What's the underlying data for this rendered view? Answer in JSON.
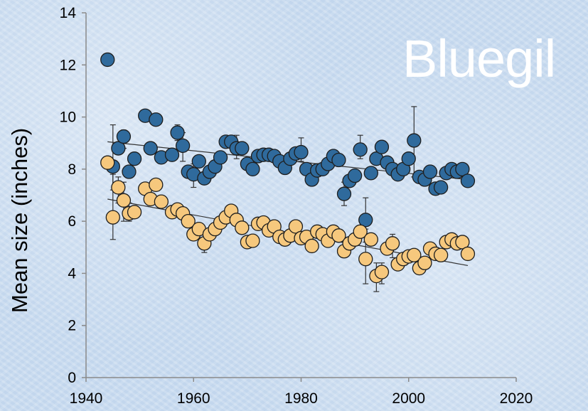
{
  "title": "Bluegil",
  "chart_data": {
    "type": "scatter",
    "title": "Bluegil",
    "xlabel": "",
    "ylabel": "Mean size (inches)",
    "xlim": [
      1940,
      2020
    ],
    "ylim": [
      0,
      14
    ],
    "xticks": [
      "1940",
      "1960",
      "1980",
      "2000",
      "2020"
    ],
    "yticks": [
      "0",
      "2",
      "4",
      "6",
      "8",
      "10",
      "12",
      "14"
    ],
    "grid": false,
    "legend": "none",
    "series": [
      {
        "color": "#2f6a9c",
        "points": [
          [
            1944,
            12.2
          ],
          [
            1945,
            8.1
          ],
          [
            1946,
            8.8
          ],
          [
            1947,
            9.25
          ],
          [
            1948,
            7.9
          ],
          [
            1949,
            8.4
          ],
          [
            1951,
            10.05
          ],
          [
            1952,
            8.8
          ],
          [
            1953,
            9.9
          ],
          [
            1954,
            8.45
          ],
          [
            1956,
            8.55
          ],
          [
            1957,
            9.4
          ],
          [
            1958,
            8.9
          ],
          [
            1959,
            7.9
          ],
          [
            1960,
            7.8
          ],
          [
            1961,
            8.3
          ],
          [
            1962,
            7.65
          ],
          [
            1963,
            7.9
          ],
          [
            1964,
            8.1
          ],
          [
            1965,
            8.45
          ],
          [
            1966,
            9.05
          ],
          [
            1967,
            9.05
          ],
          [
            1968,
            8.8
          ],
          [
            1969,
            8.8
          ],
          [
            1970,
            8.2
          ],
          [
            1971,
            8.0
          ],
          [
            1972,
            8.5
          ],
          [
            1973,
            8.55
          ],
          [
            1974,
            8.55
          ],
          [
            1975,
            8.5
          ],
          [
            1976,
            8.3
          ],
          [
            1977,
            8.05
          ],
          [
            1978,
            8.4
          ],
          [
            1979,
            8.6
          ],
          [
            1980,
            8.65
          ],
          [
            1981,
            8.0
          ],
          [
            1982,
            7.6
          ],
          [
            1983,
            7.95
          ],
          [
            1984,
            8.0
          ],
          [
            1985,
            8.2
          ],
          [
            1986,
            8.5
          ],
          [
            1987,
            8.35
          ],
          [
            1988,
            7.05
          ],
          [
            1989,
            7.55
          ],
          [
            1990,
            7.75
          ],
          [
            1991,
            8.75
          ],
          [
            1992,
            6.05
          ],
          [
            1993,
            7.85
          ],
          [
            1994,
            8.4
          ],
          [
            1995,
            8.85
          ],
          [
            1996,
            8.25
          ],
          [
            1997,
            8.0
          ],
          [
            1998,
            7.8
          ],
          [
            1999,
            8.0
          ],
          [
            2000,
            8.4
          ],
          [
            2001,
            9.1
          ],
          [
            2002,
            7.7
          ],
          [
            2003,
            7.6
          ],
          [
            2004,
            7.9
          ],
          [
            2005,
            7.25
          ],
          [
            2006,
            7.3
          ],
          [
            2007,
            7.85
          ],
          [
            2008,
            8.0
          ],
          [
            2009,
            7.9
          ],
          [
            2010,
            8.0
          ],
          [
            2011,
            7.55
          ]
        ]
      },
      {
        "color": "#f6c87d",
        "points": [
          [
            1944,
            8.25
          ],
          [
            1945,
            6.15
          ],
          [
            1946,
            7.3
          ],
          [
            1947,
            6.8
          ],
          [
            1948,
            6.3
          ],
          [
            1949,
            6.35
          ],
          [
            1951,
            7.25
          ],
          [
            1952,
            6.85
          ],
          [
            1953,
            7.4
          ],
          [
            1954,
            6.75
          ],
          [
            1956,
            6.35
          ],
          [
            1957,
            6.45
          ],
          [
            1958,
            6.3
          ],
          [
            1959,
            6.0
          ],
          [
            1960,
            5.5
          ],
          [
            1961,
            5.7
          ],
          [
            1962,
            5.15
          ],
          [
            1963,
            5.5
          ],
          [
            1964,
            5.7
          ],
          [
            1965,
            5.95
          ],
          [
            1966,
            6.15
          ],
          [
            1967,
            6.4
          ],
          [
            1968,
            6.05
          ],
          [
            1969,
            5.75
          ],
          [
            1970,
            5.2
          ],
          [
            1971,
            5.25
          ],
          [
            1972,
            5.9
          ],
          [
            1973,
            5.95
          ],
          [
            1974,
            5.65
          ],
          [
            1975,
            5.8
          ],
          [
            1976,
            5.4
          ],
          [
            1977,
            5.3
          ],
          [
            1978,
            5.45
          ],
          [
            1979,
            5.8
          ],
          [
            1980,
            5.35
          ],
          [
            1981,
            5.4
          ],
          [
            1982,
            5.05
          ],
          [
            1983,
            5.6
          ],
          [
            1984,
            5.5
          ],
          [
            1985,
            5.25
          ],
          [
            1986,
            5.6
          ],
          [
            1987,
            5.45
          ],
          [
            1988,
            4.85
          ],
          [
            1989,
            5.15
          ],
          [
            1990,
            5.3
          ],
          [
            1991,
            5.6
          ],
          [
            1992,
            4.55
          ],
          [
            1993,
            5.3
          ],
          [
            1994,
            3.9
          ],
          [
            1995,
            4.05
          ],
          [
            1996,
            4.95
          ],
          [
            1997,
            5.15
          ],
          [
            1998,
            4.35
          ],
          [
            1999,
            4.55
          ],
          [
            2000,
            4.65
          ],
          [
            2001,
            4.7
          ],
          [
            2002,
            4.2
          ],
          [
            2003,
            4.4
          ],
          [
            2004,
            4.95
          ],
          [
            2005,
            4.75
          ],
          [
            2006,
            4.7
          ],
          [
            2007,
            5.2
          ],
          [
            2008,
            5.3
          ],
          [
            2009,
            5.15
          ],
          [
            2010,
            5.2
          ],
          [
            2011,
            4.75
          ]
        ]
      }
    ],
    "trendlines": [
      {
        "x": [
          1944,
          2011
        ],
        "y": [
          9.05,
          7.6
        ]
      },
      {
        "x": [
          1944,
          2011
        ],
        "y": [
          6.85,
          4.3
        ]
      }
    ],
    "error_bars": [
      {
        "series": 0,
        "x": 1945,
        "low": 7.2,
        "high": 9.7
      },
      {
        "series": 0,
        "x": 1947,
        "low": 8.8,
        "high": 9.5
      },
      {
        "series": 0,
        "x": 1957,
        "low": 9.1,
        "high": 9.7
      },
      {
        "series": 0,
        "x": 1958,
        "low": 8.3,
        "high": 9.4
      },
      {
        "series": 0,
        "x": 1960,
        "low": 7.3,
        "high": 8.2
      },
      {
        "series": 0,
        "x": 1968,
        "low": 8.4,
        "high": 9.3
      },
      {
        "series": 0,
        "x": 1980,
        "low": 8.3,
        "high": 9.2
      },
      {
        "series": 0,
        "x": 1988,
        "low": 6.6,
        "high": 7.5
      },
      {
        "series": 0,
        "x": 1991,
        "low": 8.4,
        "high": 9.3
      },
      {
        "series": 0,
        "x": 1992,
        "low": 5.7,
        "high": 6.9
      },
      {
        "series": 0,
        "x": 2001,
        "low": 7.7,
        "high": 10.4
      },
      {
        "series": 1,
        "x": 1945,
        "low": 5.3,
        "high": 7.8
      },
      {
        "series": 1,
        "x": 1946,
        "low": 6.7,
        "high": 7.7
      },
      {
        "series": 1,
        "x": 1947,
        "low": 6.0,
        "high": 7.5
      },
      {
        "series": 1,
        "x": 1948,
        "low": 6.0,
        "high": 6.7
      },
      {
        "series": 1,
        "x": 1962,
        "low": 4.8,
        "high": 5.6
      },
      {
        "series": 1,
        "x": 1992,
        "low": 3.6,
        "high": 5.2
      },
      {
        "series": 1,
        "x": 1994,
        "low": 3.3,
        "high": 4.4
      },
      {
        "series": 1,
        "x": 1995,
        "low": 3.6,
        "high": 4.4
      },
      {
        "series": 1,
        "x": 1997,
        "low": 4.6,
        "high": 5.5
      }
    ]
  }
}
